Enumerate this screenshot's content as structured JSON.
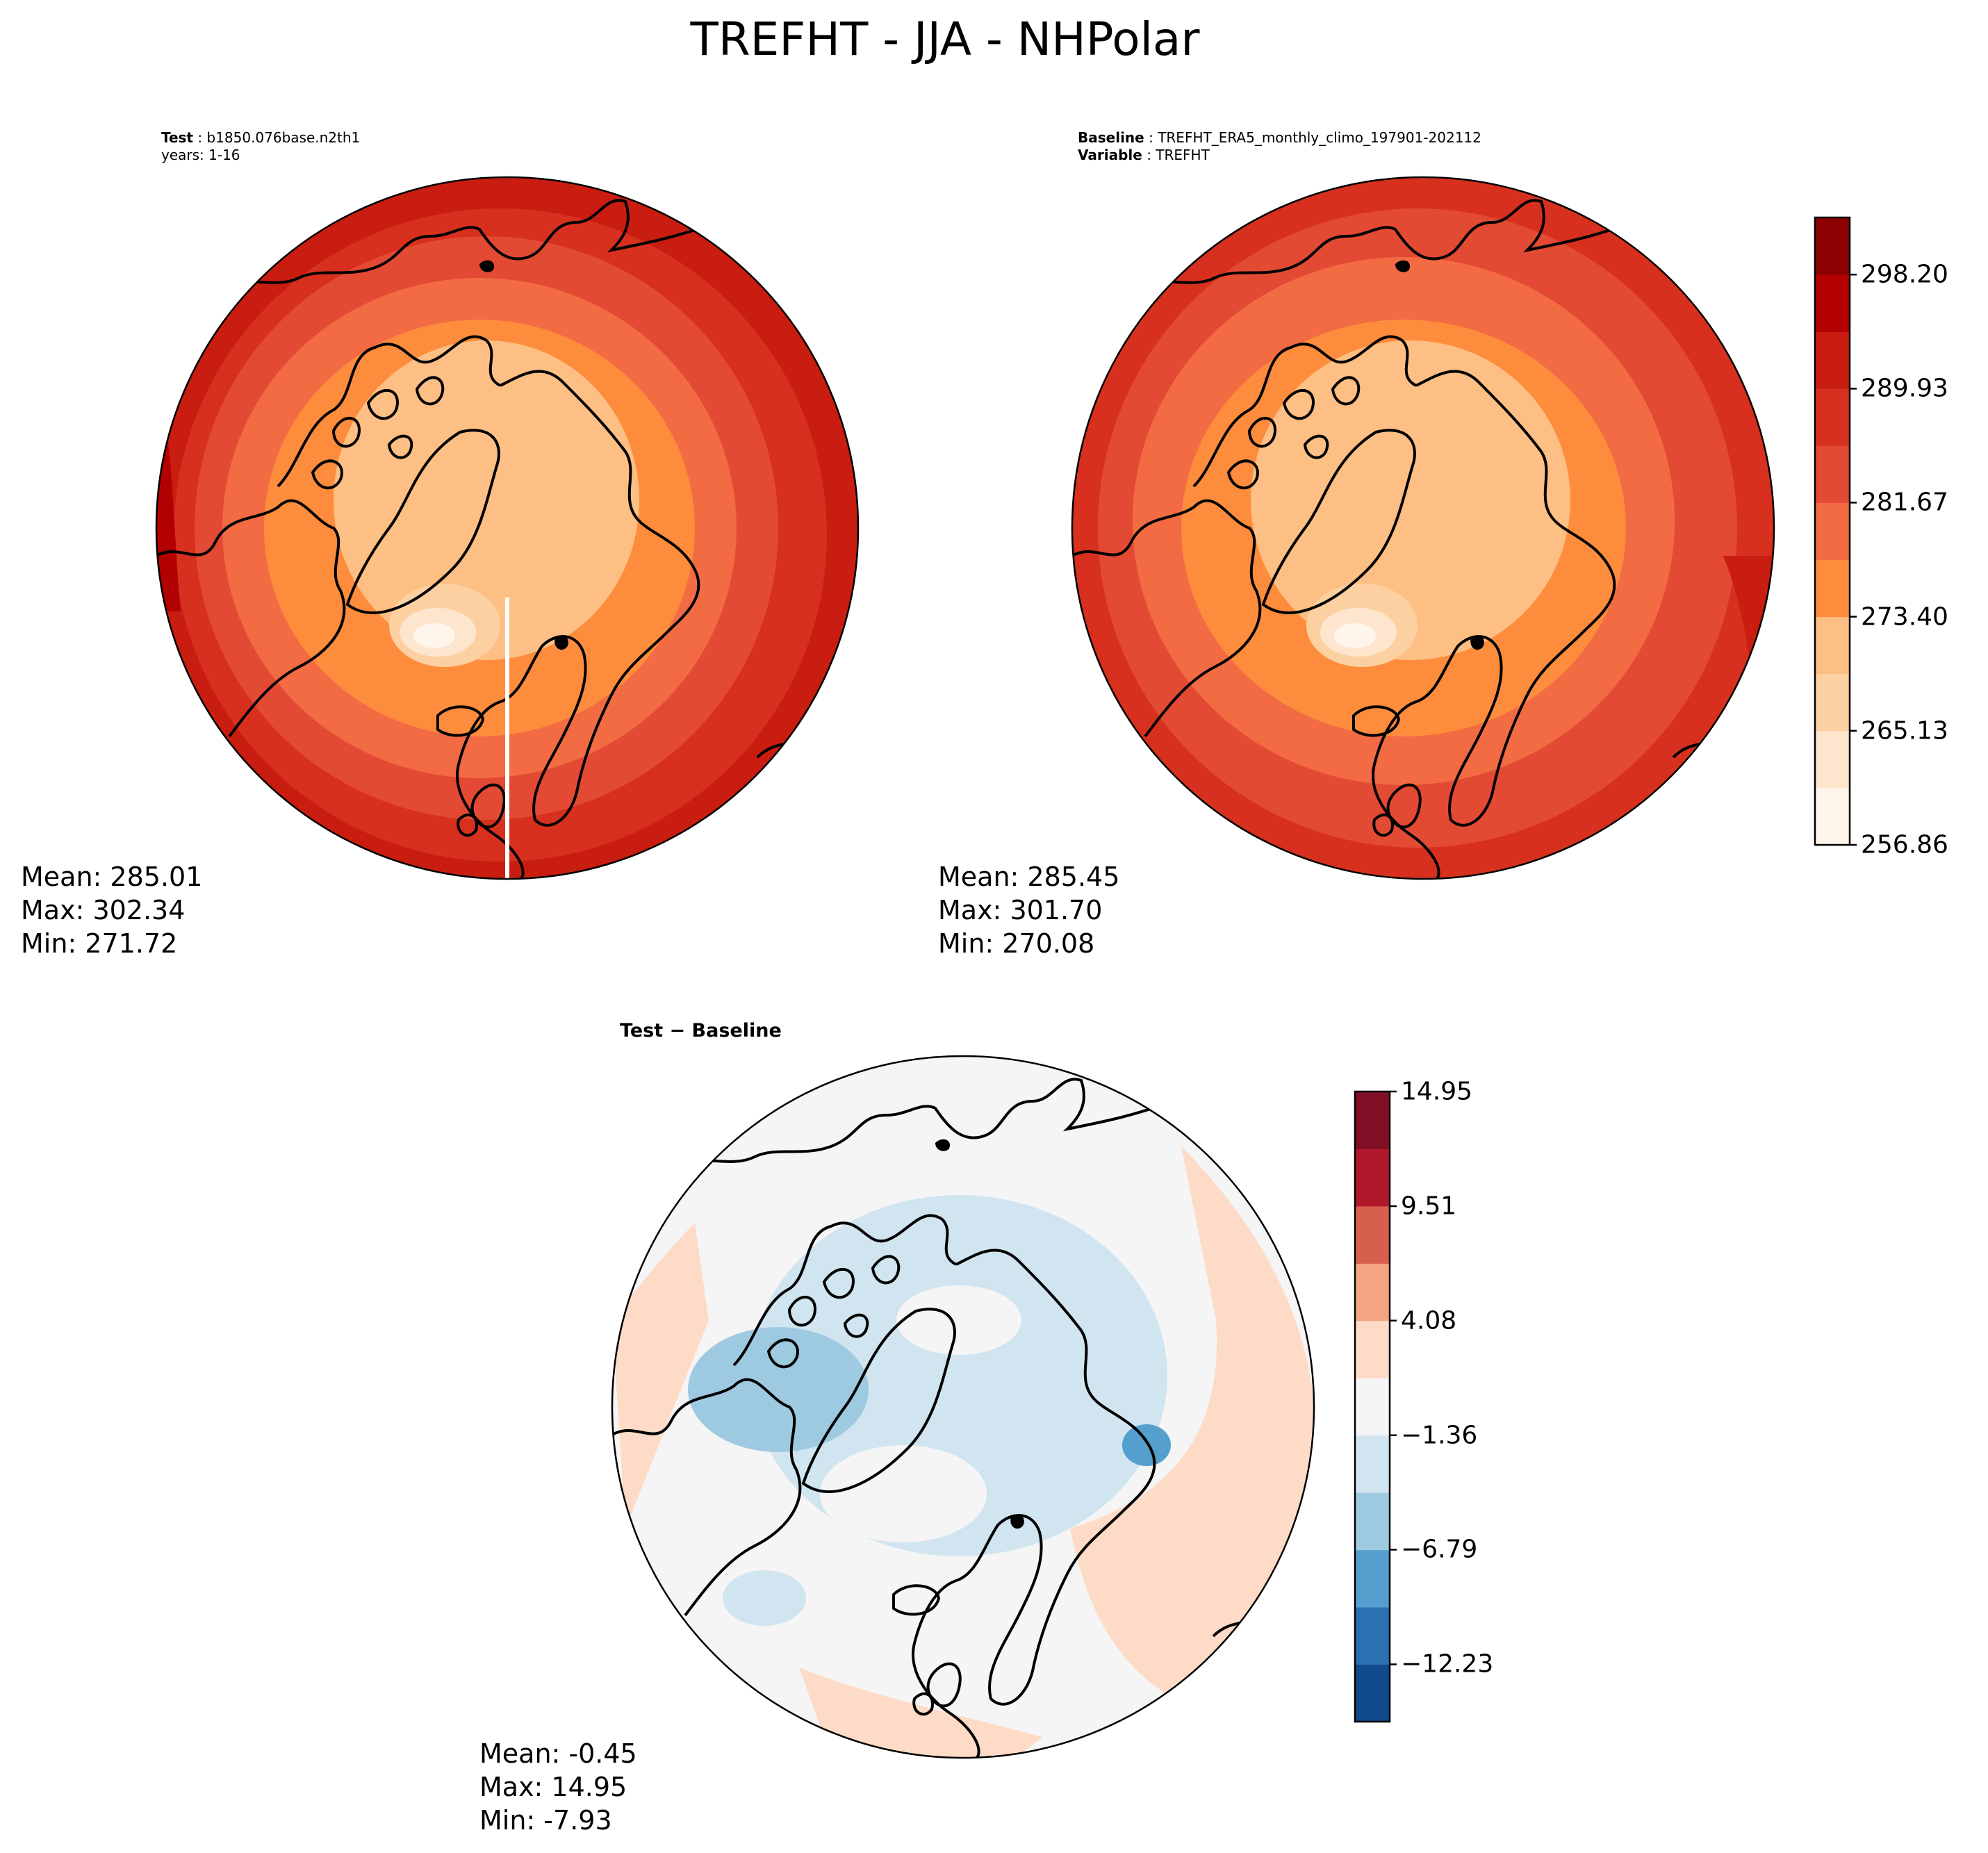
{
  "title": "TREFHT - JJA - NHPolar",
  "test_panel": {
    "label_bold": "Test",
    "label_value": "b1850.076base.n2th1",
    "years": "years: 1-16",
    "mean": "Mean: 285.01",
    "max": "Max: 302.34",
    "min": "Min: 271.72"
  },
  "baseline_panel": {
    "label_bold": "Baseline",
    "label_value": "TREFHT_ERA5_monthly_climo_197901-202112",
    "variable_bold": "Variable",
    "variable_value": "TREFHT",
    "mean": "Mean: 285.45",
    "max": "Max: 301.70",
    "min": "Min: 270.08"
  },
  "diff_panel": {
    "title": "Test − Baseline",
    "mean": "Mean: -0.45",
    "max": "Max: 14.95",
    "min": "Min: -7.93"
  },
  "colorbar_main": {
    "ticks": [
      "298.20",
      "289.93",
      "281.67",
      "273.40",
      "265.13",
      "256.86"
    ],
    "tick_values": [
      298.2,
      289.93,
      281.67,
      273.4,
      265.13,
      256.86
    ],
    "range": [
      256.86,
      302.34
    ],
    "colors": [
      "#fff5eb",
      "#fee6ce",
      "#fdd0a2",
      "#fdbf84",
      "#fd8d3c",
      "#f26b43",
      "#e34a33",
      "#d7301f",
      "#c81d10",
      "#b30000",
      "#8b0000"
    ]
  },
  "colorbar_diff": {
    "ticks": [
      "14.95",
      "9.51",
      "4.08",
      "−1.36",
      "−6.79",
      "−12.23"
    ],
    "tick_values": [
      14.95,
      9.51,
      4.08,
      -1.36,
      -6.79,
      -12.23
    ],
    "range": [
      -14.95,
      14.95
    ],
    "colors": [
      "#0f4a8a",
      "#2a71b2",
      "#549fcd",
      "#9ecae1",
      "#d1e5f0",
      "#f5f5f5",
      "#fddbc7",
      "#f4a582",
      "#d6604d",
      "#b2182b",
      "#800f26"
    ]
  }
}
